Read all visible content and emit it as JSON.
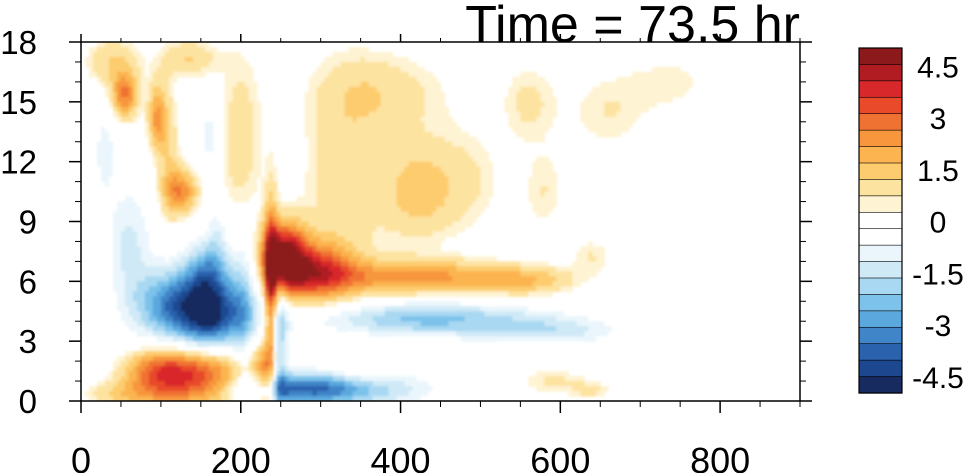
{
  "chart_data": {
    "type": "heatmap",
    "title": "Time = 73.5 hr",
    "xlabel": "",
    "ylabel": "",
    "xlim": [
      0,
      900
    ],
    "ylim": [
      0,
      18
    ],
    "x_ticks": [
      "0",
      "200",
      "400",
      "600",
      "800"
    ],
    "y_ticks": [
      "0",
      "3",
      "6",
      "9",
      "12",
      "15",
      "18"
    ],
    "colorbar": {
      "levels": [
        -5.0,
        -4.5,
        -4.0,
        -3.5,
        -3.0,
        -2.5,
        -2.0,
        -1.5,
        -1.0,
        -0.5,
        0.0,
        0.5,
        1.0,
        1.5,
        2.0,
        2.5,
        3.0,
        3.5,
        4.0,
        4.5,
        5.0
      ],
      "labels": [
        "4.5",
        "3",
        "1.5",
        "0",
        "-1.5",
        "-3",
        "-4.5"
      ],
      "colors": [
        "#8c1a1d",
        "#b01c22",
        "#d8282b",
        "#e84a2a",
        "#f07232",
        "#f7963d",
        "#fbb450",
        "#fdcc6e",
        "#fde3a0",
        "#fef3d2",
        "#ffffff",
        "#ffffff",
        "#eaf6fc",
        "#cfe9f7",
        "#a9d8f2",
        "#7cc2eb",
        "#5aa8de",
        "#3f85c8",
        "#2a62ad",
        "#1d4890",
        "#172b60"
      ]
    },
    "features": [
      {
        "x": 150,
        "y": 1.2,
        "sx": 45,
        "sy": 1.1,
        "value": 3.5
      },
      {
        "x": 95,
        "y": 1.5,
        "sx": 30,
        "sy": 0.8,
        "value": 2.0
      },
      {
        "x": 60,
        "y": 0.3,
        "sx": 40,
        "sy": 0.5,
        "value": 1.2
      },
      {
        "x": 228,
        "y": 1.0,
        "sx": 10,
        "sy": 1.5,
        "value": 2.5
      },
      {
        "x": 300,
        "y": 0.6,
        "sx": 75,
        "sy": 0.6,
        "value": -4.0
      },
      {
        "x": 243,
        "y": 3.0,
        "sx": 10,
        "sy": 2.5,
        "value": -3.0
      },
      {
        "x": 254,
        "y": 7.2,
        "sx": 20,
        "sy": 1.2,
        "value": 5.0
      },
      {
        "x": 238,
        "y": 4.6,
        "sx": 6,
        "sy": 3.3,
        "value": 4.5
      },
      {
        "x": 297,
        "y": 6.5,
        "sx": 30,
        "sy": 1.0,
        "value": 3.0
      },
      {
        "x": 420,
        "y": 6.2,
        "sx": 90,
        "sy": 0.6,
        "value": 2.3
      },
      {
        "x": 560,
        "y": 6.0,
        "sx": 40,
        "sy": 0.5,
        "value": 1.2
      },
      {
        "x": 430,
        "y": 4.1,
        "sx": 100,
        "sy": 0.6,
        "value": -2.3
      },
      {
        "x": 590,
        "y": 3.5,
        "sx": 60,
        "sy": 0.5,
        "value": -1.3
      },
      {
        "x": 165,
        "y": 4.3,
        "sx": 28,
        "sy": 1.3,
        "value": -4.0
      },
      {
        "x": 115,
        "y": 4.8,
        "sx": 35,
        "sy": 1.3,
        "value": -3.2
      },
      {
        "x": 160,
        "y": 6.6,
        "sx": 20,
        "sy": 1.0,
        "value": -2.2
      },
      {
        "x": 60,
        "y": 8.0,
        "sx": 20,
        "sy": 2.0,
        "value": -1.3
      },
      {
        "x": 205,
        "y": 5.0,
        "sx": 12,
        "sy": 2.5,
        "value": -1.5
      },
      {
        "x": 125,
        "y": 10.5,
        "sx": 15,
        "sy": 0.8,
        "value": 2.4
      },
      {
        "x": 55,
        "y": 15.3,
        "sx": 12,
        "sy": 0.8,
        "value": 2.6
      },
      {
        "x": 95,
        "y": 14.2,
        "sx": 8,
        "sy": 1.2,
        "value": 2.2
      },
      {
        "x": 40,
        "y": 17.0,
        "sx": 25,
        "sy": 0.9,
        "value": 1.2
      },
      {
        "x": 135,
        "y": 17.2,
        "sx": 25,
        "sy": 0.7,
        "value": 1.2
      },
      {
        "x": 110,
        "y": 12.5,
        "sx": 10,
        "sy": 2.5,
        "value": 1.0
      },
      {
        "x": 200,
        "y": 13.0,
        "sx": 20,
        "sy": 3.5,
        "value": 1.0
      },
      {
        "x": 30,
        "y": 12.5,
        "sx": 10,
        "sy": 1.5,
        "value": -1.0
      },
      {
        "x": 160,
        "y": 13.3,
        "sx": 8,
        "sy": 1.0,
        "value": -1.2
      },
      {
        "x": 170,
        "y": 8.5,
        "sx": 10,
        "sy": 1.0,
        "value": -1.0
      },
      {
        "x": 330,
        "y": 11.0,
        "sx": 40,
        "sy": 4.0,
        "value": 1.0
      },
      {
        "x": 420,
        "y": 10.5,
        "sx": 30,
        "sy": 1.8,
        "value": 1.3
      },
      {
        "x": 480,
        "y": 11.0,
        "sx": 35,
        "sy": 2.0,
        "value": 0.8
      },
      {
        "x": 560,
        "y": 15.0,
        "sx": 25,
        "sy": 1.5,
        "value": 0.8
      },
      {
        "x": 660,
        "y": 14.5,
        "sx": 40,
        "sy": 1.5,
        "value": 0.7
      },
      {
        "x": 740,
        "y": 16.0,
        "sx": 40,
        "sy": 1.0,
        "value": 0.6
      },
      {
        "x": 380,
        "y": 15.5,
        "sx": 60,
        "sy": 1.5,
        "value": 0.9
      },
      {
        "x": 580,
        "y": 10.5,
        "sx": 20,
        "sy": 1.5,
        "value": 0.7
      },
      {
        "x": 640,
        "y": 7.3,
        "sx": 20,
        "sy": 0.7,
        "value": 0.7
      },
      {
        "x": 350,
        "y": 1.2,
        "sx": 30,
        "sy": 0.8,
        "value": 1.0
      },
      {
        "x": 590,
        "y": 1.0,
        "sx": 30,
        "sy": 0.5,
        "value": 0.8
      },
      {
        "x": 640,
        "y": 0.5,
        "sx": 20,
        "sy": 0.4,
        "value": 0.7
      }
    ]
  }
}
